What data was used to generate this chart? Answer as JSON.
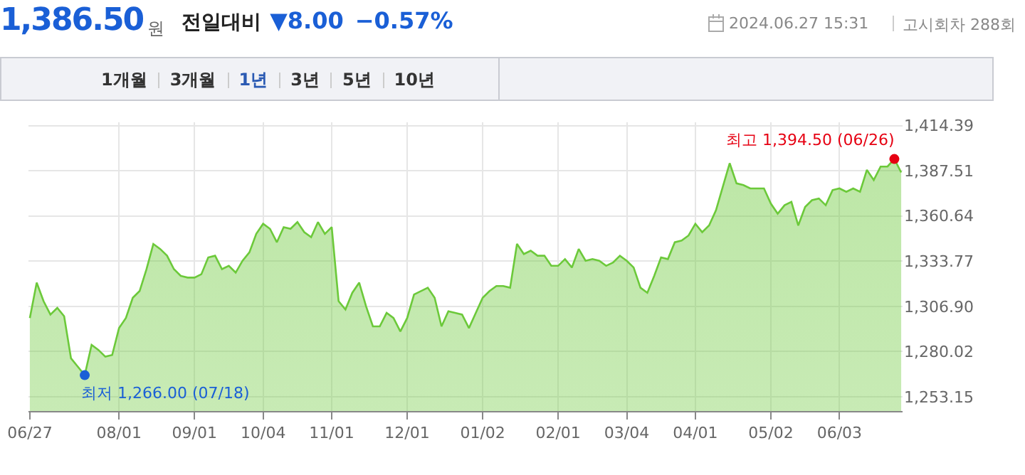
{
  "chart_data": {
    "type": "area",
    "title": "1,386.50",
    "annotations": [
      "원",
      "전일대비",
      "▼8.00",
      "−0.57%",
      "2024.06.27 15:31",
      "고시회차 288회",
      "1개월",
      "3개월",
      "1년",
      "3년",
      "5년",
      "10년",
      "최저 1,266.00 (07/18)",
      "최고 1,394.50 (06/26)"
    ],
    "categories": [
      "06/27",
      null,
      null,
      null,
      null,
      null,
      null,
      null,
      null,
      null,
      null,
      null,
      null,
      "08/01",
      null,
      null,
      null,
      null,
      null,
      null,
      null,
      null,
      null,
      null,
      "09/01",
      null,
      null,
      null,
      null,
      null,
      null,
      null,
      null,
      null,
      "10/04",
      null,
      null,
      null,
      null,
      null,
      null,
      null,
      null,
      null,
      "11/01",
      null,
      null,
      null,
      null,
      null,
      null,
      null,
      null,
      null,
      null,
      "12/01",
      null,
      null,
      null,
      null,
      null,
      null,
      null,
      null,
      null,
      null,
      "01/02",
      null,
      null,
      null,
      null,
      null,
      null,
      null,
      null,
      null,
      null,
      "02/01",
      null,
      null,
      null,
      null,
      null,
      null,
      null,
      null,
      null,
      "03/04",
      null,
      null,
      null,
      null,
      null,
      null,
      null,
      null,
      null,
      "04/01",
      null,
      null,
      null,
      null,
      null,
      null,
      null,
      null,
      null,
      null,
      "05/02",
      null,
      null,
      null,
      null,
      null,
      null,
      null,
      null,
      null,
      "06/03",
      null,
      null,
      null,
      null,
      null,
      null,
      null,
      null,
      null
    ],
    "series": [
      {
        "color": "#6cc93a",
        "values": [
          1300,
          1321,
          1310,
          1302,
          1306,
          1301,
          1276,
          1271,
          1266,
          1284,
          1281,
          1277,
          1278,
          1294,
          1300,
          1312,
          1316,
          1329,
          1344,
          1341,
          1337,
          1329,
          1325,
          1324,
          1324,
          1326,
          1336,
          1337,
          1329,
          1331,
          1327,
          1334,
          1339,
          1350,
          1356,
          1353,
          1345,
          1354,
          1353,
          1357,
          1351,
          1348,
          1357,
          1350,
          1354,
          1310,
          1305,
          1315,
          1321,
          1307,
          1295,
          1295,
          1303,
          1300,
          1292,
          1300,
          1314,
          1316,
          1318,
          1312,
          1295,
          1304,
          1303,
          1302,
          1294,
          1303,
          1312,
          1316,
          1319,
          1319,
          1318,
          1344,
          1338,
          1340,
          1337,
          1337,
          1331,
          1331,
          1335,
          1330,
          1341,
          1334,
          1335,
          1334,
          1331,
          1333,
          1337,
          1334,
          1330,
          1318,
          1315,
          1325,
          1336,
          1335,
          1345,
          1346,
          1349,
          1356,
          1351,
          1355,
          1364,
          1378,
          1392,
          1380,
          1379,
          1377,
          1377,
          1377,
          1368,
          1362,
          1367,
          1369,
          1355,
          1366,
          1370,
          1371,
          1367,
          1376,
          1377,
          1375,
          1377,
          1375,
          1388,
          1382,
          1390,
          1390,
          1394.5,
          1386.5
        ]
      }
    ],
    "ylim": [
      1244.7,
      1416.3
    ],
    "yticks": [
      {
        "value": 1253.15,
        "label": "1,253.15"
      },
      {
        "value": 1280.02,
        "label": "1,280.02"
      },
      {
        "value": 1306.9,
        "label": "1,306.90"
      },
      {
        "value": 1333.77,
        "label": "1,333.77"
      },
      {
        "value": 1360.64,
        "label": "1,360.64"
      },
      {
        "value": 1387.51,
        "label": "1,387.51"
      },
      {
        "value": 1414.39,
        "label": "1,414.39"
      }
    ],
    "grid": true
  }
}
